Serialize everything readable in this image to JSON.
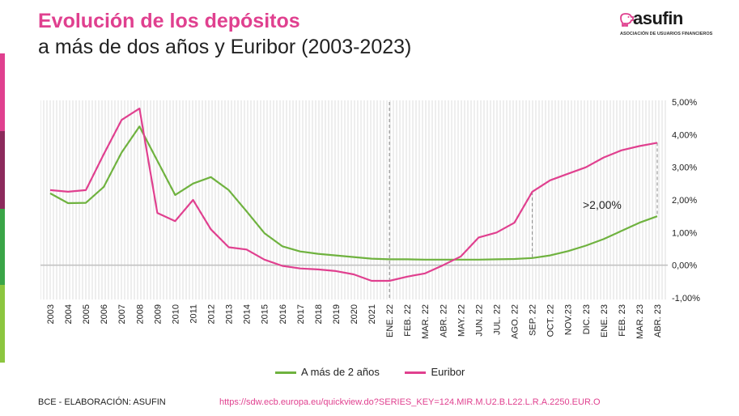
{
  "header": {
    "title": "Evolución de los depósitos",
    "subtitle": "a más de dos años y Euribor (2003-2023)"
  },
  "logo": {
    "name": "asufin",
    "tagline": "ASOCIACIÓN DE USUARIOS FINANCIEROS",
    "icon": "piggy-bank-icon"
  },
  "colors": {
    "brand_pink": "#e0408f",
    "deposits_green": "#6fb23f",
    "euribor_pink": "#e0408f",
    "side_segments": [
      "#e0408f",
      "#8c2a5c",
      "#3aa547",
      "#8cc63f"
    ]
  },
  "chart_data": {
    "type": "line",
    "categories": [
      "2003",
      "2004",
      "2005",
      "2006",
      "2007",
      "2008",
      "2009",
      "2010",
      "2011",
      "2012",
      "2013",
      "2014",
      "2015",
      "2016",
      "2017",
      "2018",
      "2019",
      "2020",
      "2021",
      "ENE. 22",
      "FEB. 22",
      "MAR. 22",
      "ABR. 22",
      "MAY. 22",
      "JUN. 22",
      "JUL. 22",
      "AGO. 22",
      "SEP. 22",
      "OCT. 22",
      "NOV.23",
      "DIC. 23",
      "ENE. 23",
      "FEB. 23",
      "MAR. 23",
      "ABR. 23"
    ],
    "series": [
      {
        "name": "A más de 2 años",
        "color": "#6fb23f",
        "values": [
          2.2,
          1.9,
          1.91,
          2.4,
          3.45,
          4.25,
          3.2,
          2.15,
          2.5,
          2.7,
          2.3,
          1.65,
          0.98,
          0.58,
          0.42,
          0.35,
          0.3,
          0.25,
          0.2,
          0.18,
          0.18,
          0.17,
          0.17,
          0.17,
          0.17,
          0.18,
          0.19,
          0.22,
          0.3,
          0.43,
          0.6,
          0.8,
          1.05,
          1.3,
          1.5
        ]
      },
      {
        "name": "Euribor",
        "color": "#e0408f",
        "values": [
          2.3,
          2.25,
          2.3,
          3.4,
          4.45,
          4.8,
          1.6,
          1.35,
          2.0,
          1.1,
          0.55,
          0.48,
          0.17,
          -0.02,
          -0.1,
          -0.13,
          -0.18,
          -0.28,
          -0.48,
          -0.48,
          -0.35,
          -0.25,
          0.0,
          0.27,
          0.85,
          1.0,
          1.3,
          2.25,
          2.6,
          2.8,
          3.0,
          3.3,
          3.52,
          3.65,
          3.75
        ]
      }
    ],
    "yticks": [
      "5,00%",
      "4,00%",
      "3,00%",
      "2,00%",
      "1,00%",
      "0,00%",
      "-1,00%"
    ],
    "ylim": [
      -1,
      5
    ],
    "grid": "vertical hatch background",
    "annotation": ">2,00%",
    "legend_position": "bottom-center"
  },
  "footer": {
    "source": "BCE - ELABORACIÓN: ASUFIN",
    "link": "https://sdw.ecb.europa.eu/quickview.do?SERIES_KEY=124.MIR.M.U2.B.L22.L.R.A.2250.EUR.O"
  }
}
